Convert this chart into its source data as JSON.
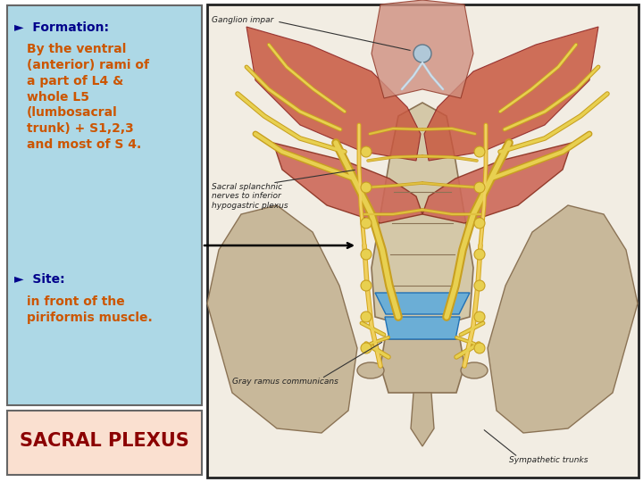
{
  "title_text": "SACRAL PLEXUS",
  "title_bg": "#FAE0D0",
  "title_color": "#8B0000",
  "panel_bg": "#ADD8E6",
  "panel_border": "#666666",
  "formation_label": "►  Formation:",
  "formation_label_color": "#00008B",
  "formation_body": "By the ventral\n(anterior) rami of\na part of L4 &\nwhole L5\n(lumbosacral\ntrunk) + S1,2,3\nand most of S 4.",
  "formation_body_color": "#CC5500",
  "site_label": "►  Site:",
  "site_label_color": "#00008B",
  "site_body": "in front of the\npiriformis muscle.",
  "site_body_color": "#CC5500",
  "figure_border": "#222222",
  "arrow_color": "#000000",
  "bg_color": "#FFFFFF",
  "img_bg": "#F2EDE3",
  "bone_color": "#C8B89A",
  "bone_edge": "#8B7355",
  "disc_color": "#6BAED6",
  "disc_edge": "#2171B5",
  "nerve_yellow": "#E8C840",
  "nerve_dark": "#C8A020",
  "muscle_red": "#CD6040",
  "muscle_salmon": "#E08060",
  "muscle_lower": "#C85030"
}
